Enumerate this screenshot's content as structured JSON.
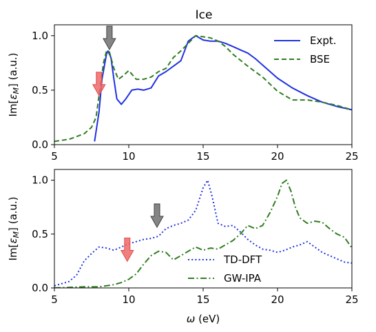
{
  "chart_data": [
    {
      "type": "line",
      "title": "Ice",
      "xlabel": "",
      "ylabel": "Im[ε_M] (a.u.)",
      "xlim": [
        5,
        25
      ],
      "ylim": [
        0,
        1.1
      ],
      "xticks": [
        "5",
        "10",
        "15",
        "20",
        "25"
      ],
      "yticks": [
        "0.0",
        "0.5",
        "1.0"
      ],
      "legend_position": "top-right",
      "series": [
        {
          "name": "Expt.",
          "color": "#1f2fe0",
          "style": "solid",
          "x": [
            7.7,
            8.0,
            8.2,
            8.5,
            8.6,
            8.8,
            9.0,
            9.2,
            9.5,
            9.8,
            10.2,
            10.6,
            11.0,
            11.5,
            12.0,
            12.5,
            13.0,
            13.5,
            14.0,
            14.5,
            15.0,
            15.5,
            16.0,
            16.5,
            17.0,
            17.5,
            18.0,
            18.5,
            19.0,
            20.0,
            21.0,
            22.0,
            23.0,
            24.0,
            25.0
          ],
          "y": [
            0.03,
            0.3,
            0.6,
            0.83,
            0.86,
            0.8,
            0.6,
            0.42,
            0.37,
            0.42,
            0.5,
            0.51,
            0.5,
            0.52,
            0.63,
            0.67,
            0.72,
            0.77,
            0.95,
            1.0,
            0.96,
            0.95,
            0.95,
            0.93,
            0.9,
            0.87,
            0.84,
            0.79,
            0.73,
            0.61,
            0.52,
            0.45,
            0.39,
            0.35,
            0.32
          ]
        },
        {
          "name": "BSE",
          "color": "#2e7d1e",
          "style": "dashed",
          "x": [
            5.0,
            6.0,
            7.0,
            7.5,
            7.8,
            8.0,
            8.3,
            8.5,
            8.7,
            9.0,
            9.3,
            9.6,
            10.0,
            10.5,
            11.0,
            11.5,
            12.0,
            12.5,
            13.0,
            13.5,
            14.0,
            14.5,
            15.0,
            15.5,
            16.0,
            16.5,
            17.0,
            18.0,
            19.0,
            20.0,
            21.0,
            22.0,
            23.0,
            24.0,
            25.0
          ],
          "y": [
            0.03,
            0.05,
            0.1,
            0.16,
            0.25,
            0.45,
            0.75,
            0.86,
            0.85,
            0.7,
            0.6,
            0.63,
            0.68,
            0.6,
            0.6,
            0.62,
            0.67,
            0.7,
            0.8,
            0.86,
            0.93,
            1.0,
            0.99,
            0.98,
            0.95,
            0.9,
            0.83,
            0.72,
            0.62,
            0.49,
            0.41,
            0.41,
            0.39,
            0.36,
            0.32
          ]
        }
      ],
      "arrows": [
        {
          "color": "#707070",
          "x": 8.7
        },
        {
          "color": "#f06868",
          "x": 8.0
        }
      ]
    },
    {
      "type": "line",
      "title": "",
      "xlabel": "ω (eV)",
      "ylabel": "Im[ε_M] (a.u.)",
      "xlim": [
        5,
        25
      ],
      "ylim": [
        0,
        1.1
      ],
      "xticks": [
        "5",
        "10",
        "15",
        "20",
        "25"
      ],
      "yticks": [
        "0.0",
        "0.5",
        "1.0"
      ],
      "legend_position": "lower-right",
      "series": [
        {
          "name": "TD-DFT",
          "color": "#1f2fe0",
          "style": "dotted",
          "x": [
            5.0,
            6.0,
            6.5,
            7.0,
            7.5,
            8.0,
            8.5,
            9.0,
            9.5,
            10.0,
            10.5,
            11.0,
            11.5,
            12.0,
            12.5,
            13.0,
            13.5,
            14.0,
            14.5,
            15.0,
            15.3,
            15.6,
            16.0,
            16.5,
            17.0,
            17.5,
            18.0,
            18.5,
            19.0,
            19.5,
            20.0,
            20.5,
            21.0,
            21.5,
            22.0,
            22.5,
            23.0,
            23.5,
            24.0,
            24.5,
            25.0
          ],
          "y": [
            0.02,
            0.06,
            0.12,
            0.25,
            0.32,
            0.38,
            0.37,
            0.35,
            0.38,
            0.41,
            0.43,
            0.45,
            0.46,
            0.48,
            0.55,
            0.58,
            0.6,
            0.63,
            0.72,
            0.93,
            1.0,
            0.85,
            0.6,
            0.57,
            0.58,
            0.52,
            0.45,
            0.4,
            0.36,
            0.35,
            0.33,
            0.35,
            0.38,
            0.4,
            0.43,
            0.38,
            0.33,
            0.3,
            0.27,
            0.24,
            0.23
          ]
        },
        {
          "name": "GW-IPA",
          "color": "#2e7d1e",
          "style": "dashdot",
          "x": [
            5.0,
            7.0,
            8.0,
            9.0,
            9.5,
            10.0,
            10.5,
            11.0,
            11.5,
            12.0,
            12.5,
            13.0,
            13.5,
            14.0,
            14.5,
            15.0,
            15.5,
            16.0,
            16.5,
            17.0,
            17.5,
            18.0,
            18.5,
            19.0,
            19.5,
            20.0,
            20.3,
            20.6,
            20.9,
            21.2,
            21.5,
            22.0,
            22.5,
            23.0,
            23.5,
            24.0,
            24.5,
            25.0
          ],
          "y": [
            0.0,
            0.01,
            0.01,
            0.03,
            0.05,
            0.08,
            0.13,
            0.22,
            0.3,
            0.34,
            0.33,
            0.26,
            0.3,
            0.34,
            0.38,
            0.35,
            0.37,
            0.36,
            0.4,
            0.44,
            0.5,
            0.58,
            0.55,
            0.58,
            0.7,
            0.85,
            0.97,
            1.0,
            0.9,
            0.75,
            0.65,
            0.6,
            0.62,
            0.61,
            0.55,
            0.5,
            0.47,
            0.37
          ]
        }
      ],
      "arrows": [
        {
          "color": "#707070",
          "x": 11.9
        },
        {
          "color": "#f06868",
          "x": 9.9
        }
      ]
    }
  ]
}
